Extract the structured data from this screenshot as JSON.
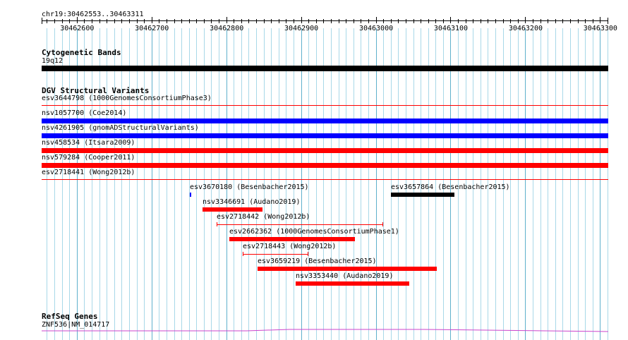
{
  "location": {
    "label": "chr19:30462553..30463311"
  },
  "ruler": {
    "ticks": [
      "30462600",
      "30462700",
      "30462800",
      "30462900",
      "30463000",
      "30463100",
      "30463200",
      "30463300"
    ]
  },
  "tracks": {
    "cytoband": {
      "title": "Cytogenetic Bands",
      "feature_label": "19q12",
      "color": "#000000"
    },
    "dgv": {
      "title": "DGV Structural Variants",
      "full_rows": [
        {
          "label": "esv3644798 (1000GenomesConsortiumPhase3)",
          "color": "#ff0000",
          "style": "line"
        },
        {
          "label": "nsv1057700 (Coe2014)",
          "color": "#0000ff",
          "style": "bar"
        },
        {
          "label": "nsv4261905 (gnomADStructuralVariants)",
          "color": "#0000ff",
          "style": "bar"
        },
        {
          "label": "nsv458534 (Itsara2009)",
          "color": "#ff0000",
          "style": "bar"
        },
        {
          "label": "nsv579284 (Cooper2011)",
          "color": "#ff0000",
          "style": "bar"
        },
        {
          "label": "esv2718441 (Wong2012b)",
          "color": "#ff0000",
          "style": "line"
        }
      ],
      "partial": [
        {
          "label": "esv3670180 (Besenbacher2015)",
          "color": "#0000ff",
          "start": 30462751,
          "end": 30462753,
          "style": "bar"
        },
        {
          "label": "esv3657864 (Besenbacher2015)",
          "color": "#000000",
          "start": 30463020,
          "end": 30463105,
          "style": "bar"
        },
        {
          "label": "nsv3346691 (Audano2019)",
          "color": "#ff0000",
          "start": 30462768,
          "end": 30462848,
          "style": "bar"
        },
        {
          "label": "esv2718442 (Wong2012b)",
          "color": "#ff0000",
          "start": 30462787,
          "end": 30463010,
          "style": "line"
        },
        {
          "label": "esv2662362 (1000GenomesConsortiumPhase1)",
          "color": "#ff0000",
          "start": 30462804,
          "end": 30462972,
          "style": "bar"
        },
        {
          "label": "esv2718443 (Wong2012b)",
          "color": "#ff0000",
          "start": 30462822,
          "end": 30462910,
          "style": "line"
        },
        {
          "label": "esv3659219 (Besenbacher2015)",
          "color": "#ff0000",
          "start": 30462842,
          "end": 30463082,
          "style": "bar"
        },
        {
          "label": "nsv3353440 (Audano2019)",
          "color": "#ff0000",
          "start": 30462893,
          "end": 30463045,
          "style": "bar"
        }
      ]
    },
    "refseq": {
      "title": "RefSeq Genes",
      "feature_label": "ZNF536|NM_014717",
      "color": "#cc44cc"
    }
  },
  "colors": {
    "grid": "#a8d8e8",
    "grid_major": "#5fb0cc"
  }
}
